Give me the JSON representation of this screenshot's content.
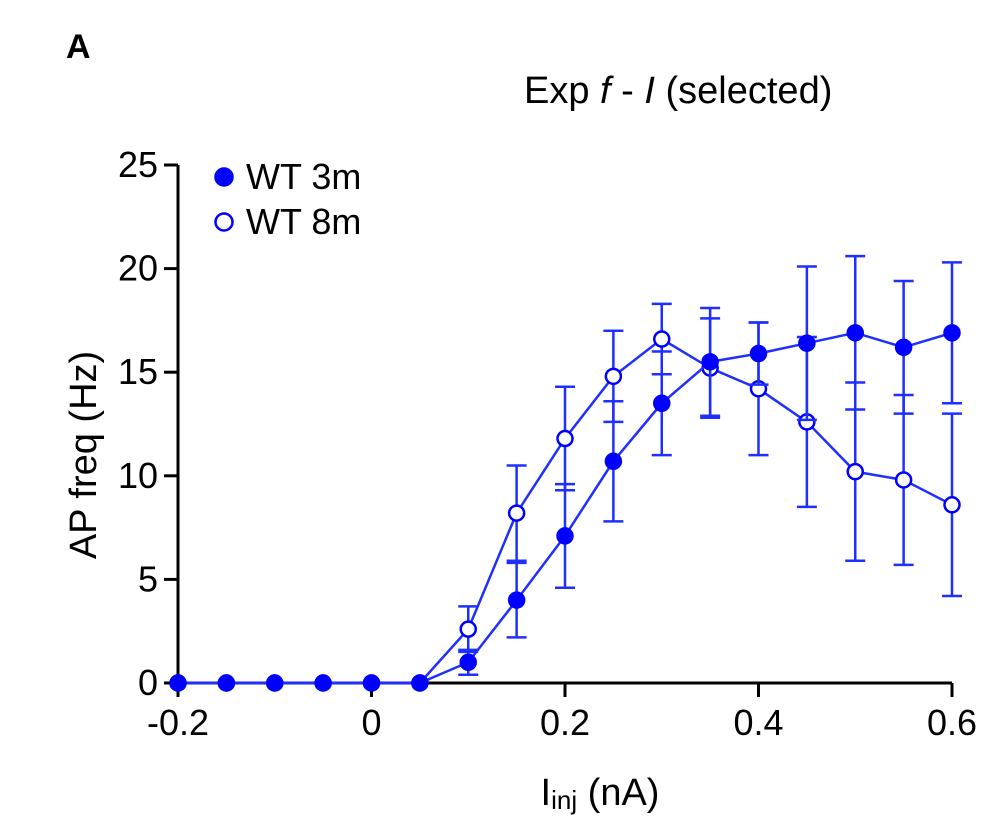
{
  "panel_label": "A",
  "title": {
    "main": "Exp ",
    "f": "f",
    "dash": " - ",
    "i": "I",
    "tail": " (selected)"
  },
  "colors": {
    "series": "#1f2fff",
    "marker": "#0000ff",
    "axis": "#000000"
  },
  "chart_data": {
    "type": "line",
    "xlabel": {
      "main": "I",
      "sub": "inj",
      "tail": " (nA)"
    },
    "ylabel": "AP freq (Hz)",
    "xlim": [
      -0.2,
      0.6
    ],
    "ylim": [
      0,
      25
    ],
    "xticks": [
      {
        "value": -0.2,
        "label": "-0.2"
      },
      {
        "value": 0,
        "label": "0"
      },
      {
        "value": 0.2,
        "label": "0.2"
      },
      {
        "value": 0.4,
        "label": "0.4"
      },
      {
        "value": 0.6,
        "label": "0.6"
      }
    ],
    "yticks": [
      {
        "value": 0,
        "label": "0"
      },
      {
        "value": 5,
        "label": "5"
      },
      {
        "value": 10,
        "label": "10"
      },
      {
        "value": 15,
        "label": "15"
      },
      {
        "value": 20,
        "label": "20"
      },
      {
        "value": 25,
        "label": "25"
      }
    ],
    "grid": false,
    "legend_position": "top-left",
    "x": [
      -0.2,
      -0.15,
      -0.1,
      -0.05,
      0,
      0.05,
      0.1,
      0.15,
      0.2,
      0.25,
      0.3,
      0.35,
      0.4,
      0.45,
      0.5,
      0.55,
      0.6
    ],
    "series": [
      {
        "name": "WT 3m",
        "marker": "filled-circle",
        "values": [
          0,
          0,
          0,
          0,
          0,
          0,
          1.0,
          4.0,
          7.1,
          10.7,
          13.5,
          15.5,
          15.9,
          16.4,
          16.9,
          16.2,
          16.9
        ],
        "error": [
          0,
          0,
          0,
          0,
          0,
          0,
          0.6,
          1.8,
          2.5,
          2.9,
          2.5,
          2.6,
          1.5,
          3.7,
          3.7,
          3.2,
          3.4
        ]
      },
      {
        "name": "WT 8m",
        "marker": "open-circle",
        "values": [
          0,
          0,
          0,
          0,
          0,
          0,
          2.6,
          8.2,
          11.8,
          14.8,
          16.6,
          15.2,
          14.2,
          12.6,
          10.2,
          9.8,
          8.6
        ],
        "error": [
          0,
          0,
          0,
          0,
          0,
          0,
          1.1,
          2.3,
          2.5,
          2.2,
          1.7,
          2.4,
          3.2,
          4.1,
          4.3,
          4.1,
          4.4
        ]
      }
    ]
  }
}
